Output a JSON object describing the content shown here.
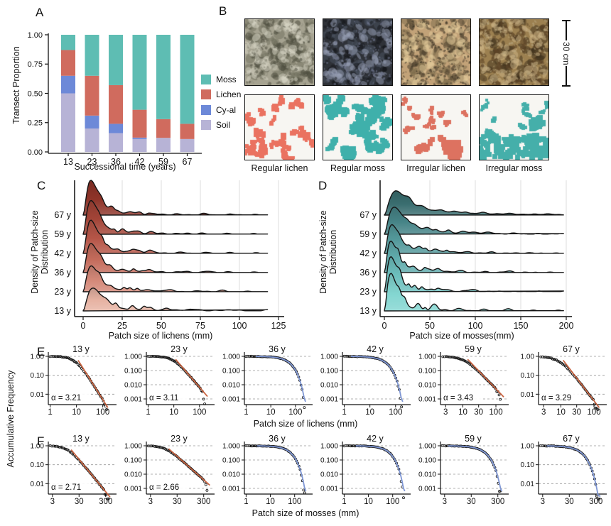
{
  "panel_labels": {
    "a": "A",
    "b": "B",
    "c": "C",
    "d": "D",
    "e": "E",
    "f": "F"
  },
  "ef_shared_ylabel": "Accumulative Frequency",
  "panel_b": {
    "captions": [
      "Regular lichen",
      "Regular moss",
      "Irregular lichen",
      "Irregular moss"
    ],
    "scale_bar_label": "30 cm",
    "maps": [
      {
        "color": "#EA7260",
        "style": "regular"
      },
      {
        "color": "#3FB0AB",
        "style": "regular-dense"
      },
      {
        "color": "#DD7260",
        "style": "irregular-lichen"
      },
      {
        "color": "#45AFAA",
        "style": "irregular-moss"
      }
    ],
    "photos": [
      {
        "base": "#A6A391",
        "dark": "#4E4E40",
        "mid": "#6E6D5C",
        "light": "#D8D5C5",
        "speckle": "#8F8E7D"
      },
      {
        "base": "#2F3238",
        "dark": "#15181C",
        "mid": "#4A5160",
        "light": "#99A2B8",
        "speckle": "#6A7288"
      },
      {
        "base": "#C2A278",
        "dark": "#4F4230",
        "mid": "#7A6A4A",
        "light": "#E2CA9A",
        "speckle": "#3B3325"
      },
      {
        "base": "#9C8050",
        "dark": "#5C4427",
        "mid": "#3D2F1B",
        "light": "#CFB78A",
        "speckle": "#B5A47C"
      }
    ]
  },
  "chart_data": [
    {
      "panel": "A",
      "type": "bar",
      "stacked": true,
      "xlabel": "Successional time (years)",
      "ylabel": "Transect Proportion",
      "categories": [
        "13",
        "23",
        "36",
        "42",
        "59",
        "67"
      ],
      "y_ticks": [
        "1.00",
        "0.75",
        "0.50",
        "0.25",
        "0.00"
      ],
      "ylim": [
        0,
        1
      ],
      "series": [
        {
          "name": "Soil",
          "color": "#B7B3D6",
          "values": [
            0.5,
            0.2,
            0.16,
            0.11,
            0.12,
            0.11
          ]
        },
        {
          "name": "Cy-al",
          "color": "#6D89D8",
          "values": [
            0.15,
            0.11,
            0.08,
            0.012,
            0,
            0
          ]
        },
        {
          "name": "Lichen",
          "color": "#D06B5E",
          "values": [
            0.22,
            0.34,
            0.33,
            0.238,
            0.16,
            0.13
          ]
        },
        {
          "name": "Moss",
          "color": "#5EBDB3",
          "values": [
            0.13,
            0.35,
            0.43,
            0.64,
            0.72,
            0.76
          ]
        }
      ],
      "legend": [
        {
          "label": "Moss",
          "color": "#5EBDB3"
        },
        {
          "label": "Lichen",
          "color": "#D06B5E"
        },
        {
          "label": "Cy-al",
          "color": "#6D89D8"
        },
        {
          "label": "Soil",
          "color": "#B7B3D6"
        }
      ]
    },
    {
      "panel": "C",
      "type": "area",
      "subtype": "ridgeline",
      "xlabel": "Patch size of lichens (mm)",
      "ylabel": "Density of Patch-size\nDistribution",
      "x_ticks": [
        0,
        25,
        50,
        75,
        100,
        125
      ],
      "xlim": [
        0,
        125
      ],
      "data_end": 118,
      "rows": [
        {
          "label": "67 y",
          "color": "#8F3429",
          "height": 1.75,
          "peak": 5,
          "tail": 0.13,
          "jag": 0.5,
          "seed": 11
        },
        {
          "label": "59 y",
          "color": "#A34437",
          "height": 1.7,
          "peak": 5,
          "tail": 0.14,
          "jag": 0.6,
          "seed": 12
        },
        {
          "label": "42 y",
          "color": "#B65547",
          "height": 1.65,
          "peak": 5,
          "tail": 0.15,
          "jag": 0.6,
          "seed": 13
        },
        {
          "label": "36 y",
          "color": "#C46B5B",
          "height": 1.45,
          "peak": 5,
          "tail": 0.16,
          "jag": 0.7,
          "seed": 14
        },
        {
          "label": "23 y",
          "color": "#D48878",
          "height": 1.25,
          "peak": 5,
          "tail": 0.18,
          "jag": 0.95,
          "seed": 15
        },
        {
          "label": "13 y",
          "color": "#E7B3A3",
          "height": 1.1,
          "peak": 6,
          "tail": 0.2,
          "jag": 1.25,
          "seed": 16
        }
      ]
    },
    {
      "panel": "D",
      "type": "area",
      "subtype": "ridgeline",
      "xlabel": "Patch size of mosses(mm)",
      "ylabel": "Density of Patch-size\nDistribution",
      "x_ticks": [
        0,
        50,
        100,
        150,
        200
      ],
      "xlim": [
        0,
        200
      ],
      "data_end": 197,
      "rows": [
        {
          "label": "67 y",
          "color": "#3A6E70",
          "height": 1.05,
          "peak": 12,
          "tail": 0.5,
          "jag": 0.8,
          "seed": 21
        },
        {
          "label": "59 y",
          "color": "#468487",
          "height": 1.2,
          "peak": 10,
          "tail": 0.42,
          "jag": 0.8,
          "seed": 22
        },
        {
          "label": "42 y",
          "color": "#549A9C",
          "height": 1.3,
          "peak": 8,
          "tail": 0.32,
          "jag": 0.7,
          "seed": 23
        },
        {
          "label": "36 y",
          "color": "#60ACAD",
          "height": 1.5,
          "peak": 7,
          "tail": 0.26,
          "jag": 0.7,
          "seed": 24
        },
        {
          "label": "23 y",
          "color": "#6DC0BE",
          "height": 1.7,
          "peak": 7,
          "tail": 0.22,
          "jag": 0.75,
          "seed": 25
        },
        {
          "label": "13 y",
          "color": "#83D6D1",
          "height": 1.85,
          "peak": 7,
          "tail": 0.14,
          "jag": 0.8,
          "seed": 26
        }
      ]
    },
    {
      "panel": "E",
      "type": "scatter",
      "subtype": "ccdf_loglog",
      "xlabel": "Patch size of lichens (mm)",
      "ylabel": "Accumulative Frequency",
      "fit_colors": {
        "power": "#C8603C",
        "curved": "#7E96D4"
      },
      "subplots": [
        {
          "title": "13 y",
          "alpha": 3.21,
          "alpha_label": "α = 3.21",
          "fit": "power",
          "x_ticks": [
            1,
            10,
            100
          ],
          "y_tick_labels": [
            "1.00",
            "0.10",
            "0.01"
          ],
          "x_range": [
            0.85,
            260
          ],
          "x_data_max": 140,
          "seed": 101
        },
        {
          "title": "23 y",
          "alpha": 3.11,
          "alpha_label": "α = 3.11",
          "fit": "power",
          "x_ticks": [
            1,
            10,
            100
          ],
          "y_tick_labels": [
            "1.000",
            "0.100",
            "0.010",
            "0.001"
          ],
          "x_range": [
            0.85,
            300
          ],
          "x_data_max": 160,
          "seed": 102
        },
        {
          "title": "36 y",
          "alpha": null,
          "alpha_label": "",
          "fit": "curved",
          "x_ticks": [
            1,
            10,
            100
          ],
          "y_tick_labels": [
            "1.000",
            "0.100",
            "0.010",
            "0.001"
          ],
          "x_range": [
            0.85,
            380
          ],
          "x_data_max": 230,
          "seed": 103
        },
        {
          "title": "42 y",
          "alpha": null,
          "alpha_label": "",
          "fit": "curved",
          "x_ticks": [
            1,
            10,
            100
          ],
          "y_tick_labels": [
            "1.000",
            "0.100",
            "0.010",
            "0.001"
          ],
          "x_range": [
            0.85,
            300
          ],
          "x_data_max": 170,
          "seed": 104
        },
        {
          "title": "59 y",
          "alpha": 3.43,
          "alpha_label": "α = 3.43",
          "fit": "power",
          "x_ticks": [
            3,
            10,
            30,
            100
          ],
          "y_tick_labels": [
            "1.000",
            "0.100",
            "0.010",
            "0.001"
          ],
          "x_range": [
            2.1,
            200
          ],
          "x_data_max": 135,
          "seed": 105
        },
        {
          "title": "67 y",
          "alpha": 3.29,
          "alpha_label": "α = 3.29",
          "fit": "power",
          "x_ticks": [
            3,
            10,
            30,
            100
          ],
          "y_tick_labels": [
            "1.00",
            "0.10",
            "0.01"
          ],
          "x_range": [
            2.1,
            200
          ],
          "x_data_max": 130,
          "seed": 106
        }
      ]
    },
    {
      "panel": "F",
      "type": "scatter",
      "subtype": "ccdf_loglog",
      "xlabel": "Patch size of mosses (mm)",
      "ylabel": "Accumulative Frequency",
      "fit_colors": {
        "power": "#C8603C",
        "curved": "#7E96D4"
      },
      "subplots": [
        {
          "title": "13 y",
          "alpha": 2.71,
          "alpha_label": "α = 2.71",
          "fit": "power",
          "x_ticks": [
            3,
            30,
            300
          ],
          "y_tick_labels": [
            "1.00",
            "0.10",
            "0.01"
          ],
          "x_range": [
            2.1,
            600
          ],
          "x_data_max": 380,
          "seed": 107
        },
        {
          "title": "23 y",
          "alpha": 2.66,
          "alpha_label": "α = 2.66",
          "fit": "power",
          "x_ticks": [
            3,
            30,
            300
          ],
          "y_tick_labels": [
            "1.000",
            "0.100",
            "0.010",
            "0.001"
          ],
          "x_range": [
            2.1,
            600
          ],
          "x_data_max": 400,
          "seed": 108
        },
        {
          "title": "36 y",
          "alpha": null,
          "alpha_label": "",
          "fit": "curved",
          "x_ticks": [
            1,
            10,
            100
          ],
          "y_tick_labels": [
            "1.000",
            "0.100",
            "0.010",
            "0.001"
          ],
          "x_range": [
            0.85,
            420
          ],
          "x_data_max": 260,
          "seed": 109
        },
        {
          "title": "42 y",
          "alpha": null,
          "alpha_label": "",
          "fit": "curved",
          "x_ticks": [
            1,
            10,
            100
          ],
          "y_tick_labels": [
            "1.000",
            "0.100",
            "0.010",
            "0.001"
          ],
          "x_range": [
            0.85,
            420
          ],
          "x_data_max": 280,
          "seed": 110
        },
        {
          "title": "59 y",
          "alpha": null,
          "alpha_label": "",
          "fit": "curved",
          "x_ticks": [
            3,
            30,
            300
          ],
          "y_tick_labels": [
            "1.000",
            "0.100",
            "0.010",
            "0.001"
          ],
          "x_range": [
            2.1,
            600
          ],
          "x_data_max": 380,
          "seed": 111
        },
        {
          "title": "67 y",
          "alpha": null,
          "alpha_label": "",
          "fit": "curved",
          "x_ticks": [
            3,
            30,
            300
          ],
          "y_tick_labels": [
            "1.00",
            "0.10",
            "0.01"
          ],
          "x_range": [
            2.1,
            600
          ],
          "x_data_max": 400,
          "seed": 112
        }
      ]
    }
  ]
}
